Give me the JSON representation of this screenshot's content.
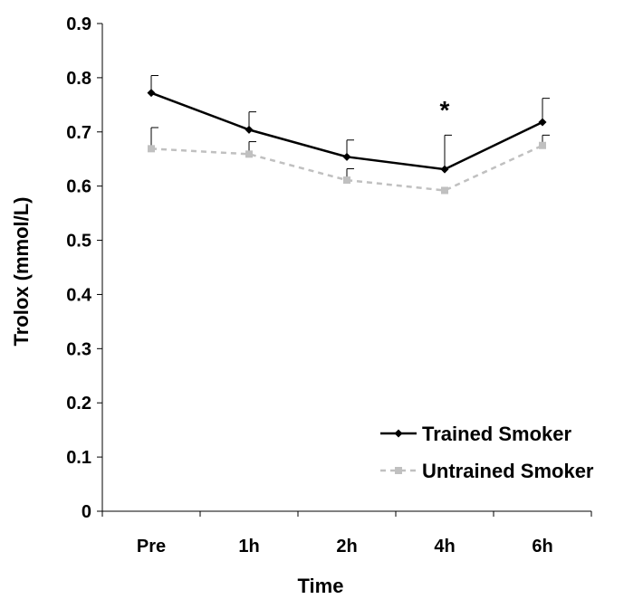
{
  "chart_data": {
    "type": "line",
    "xlabel": "Time",
    "ylabel": "Trolox (mmol/L)",
    "categories": [
      "Pre",
      "1h",
      "2h",
      "4h",
      "6h"
    ],
    "ylim": [
      0,
      0.9
    ],
    "yticks": [
      0,
      0.1,
      0.2,
      0.3,
      0.4,
      0.5,
      0.6,
      0.7,
      0.8,
      0.9
    ],
    "ytick_labels": [
      "0",
      "0.1",
      "0.2",
      "0.3",
      "0.4",
      "0.5",
      "0.6",
      "0.7",
      "0.8",
      "0.9"
    ],
    "grid": false,
    "legend_position": "bottom-right",
    "series": [
      {
        "name": "Trained Smoker",
        "values": [
          0.772,
          0.704,
          0.654,
          0.631,
          0.718
        ],
        "error_upper": [
          0.032,
          0.033,
          0.031,
          0.063,
          0.044
        ],
        "color": "#000000",
        "line_style": "solid",
        "marker": "diamond"
      },
      {
        "name": "Untrained Smoker",
        "values": [
          0.669,
          0.659,
          0.611,
          0.592,
          0.675
        ],
        "error_upper": [
          0.039,
          0.023,
          0.021,
          0.0,
          0.019
        ],
        "color": "#c0c0c0",
        "line_style": "dashed",
        "marker": "square"
      }
    ],
    "annotations": [
      {
        "text": "*",
        "category": "4h",
        "y": 0.755
      }
    ]
  }
}
